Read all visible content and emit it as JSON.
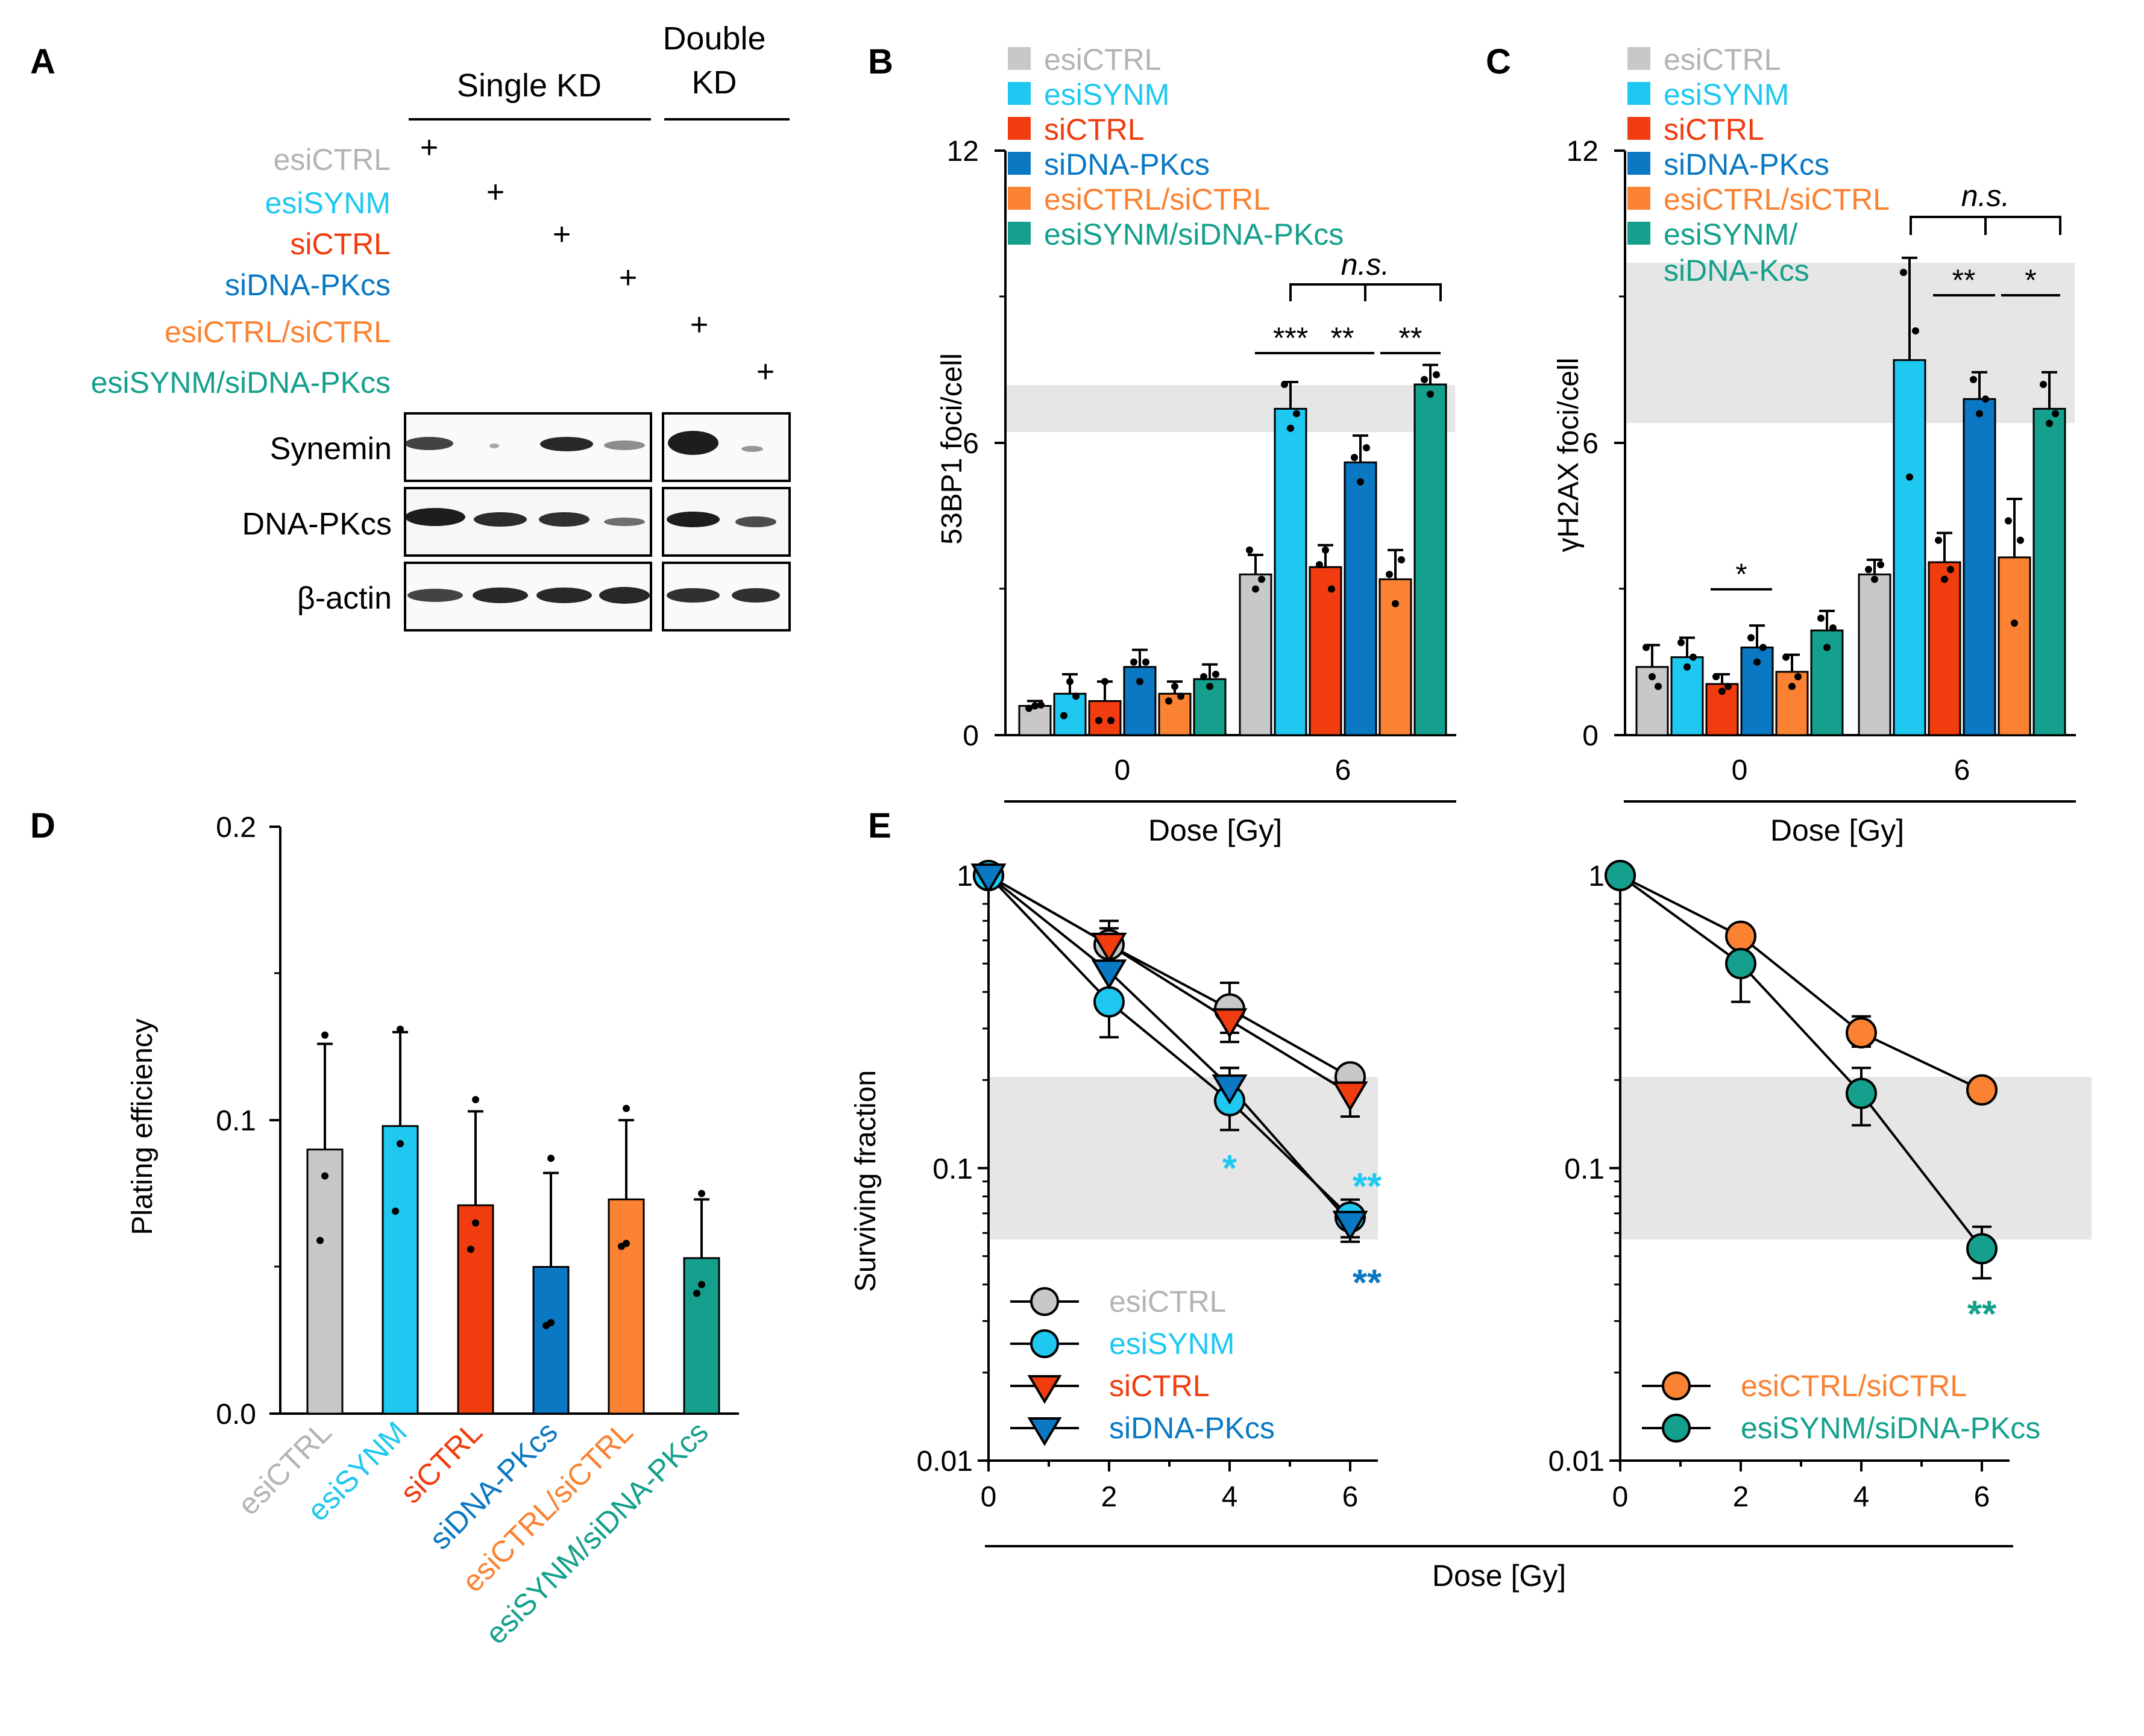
{
  "colors": {
    "esiCTRL": "#c8c8c8",
    "esiSYNM": "#1ec8f0",
    "siCTRL": "#f03c0f",
    "siDNA-PKcs": "#0a78c3",
    "esiCTRL/siCTRL": "#fa8232",
    "esiSYNM/siDNA-PKcs": "#14a08c",
    "esiCTRL_text": "#b4b4b4",
    "band": "#e6e6e6",
    "ink": "#000000"
  },
  "panelA": {
    "letter": "A",
    "header_single": "Single KD",
    "header_double_1": "Double",
    "header_double_2": "KD",
    "conditions": [
      "esiCTRL",
      "esiSYNM",
      "siCTRL",
      "siDNA-PKcs",
      "esiCTRL/siCTRL",
      "esiSYNM/siDNA-PKcs"
    ],
    "plus": "+",
    "blots": [
      "Synemin",
      "DNA-PKcs",
      "β-actin"
    ]
  },
  "panelB": {
    "letter": "B",
    "legend": [
      "esiCTRL",
      "esiSYNM",
      "siCTRL",
      "siDNA-PKcs",
      "esiCTRL/siCTRL",
      "esiSYNM/siDNA-PKcs"
    ],
    "sig": [
      "***",
      "**",
      "**"
    ],
    "ns": "n.s."
  },
  "panelC": {
    "letter": "C",
    "legend": [
      "esiCTRL",
      "esiSYNM",
      "siCTRL",
      "siDNA-PKcs",
      "esiCTRL/siCTRL",
      "esiSYNM/",
      "siDNA-Kcs"
    ],
    "sig_low": "*",
    "sig": [
      "**",
      "*"
    ],
    "ns": "n.s."
  },
  "panelD": {
    "letter": "D"
  },
  "panelE": {
    "letter": "E",
    "legend_left": [
      "esiCTRL",
      "esiSYNM",
      "siCTRL",
      "siDNA-PKcs"
    ],
    "legend_right": [
      "esiCTRL/siCTRL",
      "esiSYNM/siDNA-PKcs"
    ],
    "stars": [
      "*",
      "**",
      "**",
      "**"
    ],
    "xlabel": "Dose [Gy]"
  },
  "chart_data": [
    {
      "id": "B",
      "type": "bar",
      "title": "",
      "ylabel": "53BP1 foci/cell",
      "xlabel": "Dose [Gy]",
      "categories": [
        "0",
        "6"
      ],
      "ylim": [
        0,
        12
      ],
      "yticks": [
        "0",
        "6",
        "12"
      ],
      "reference_band": [
        6.2,
        7.2
      ],
      "series": [
        {
          "name": "esiCTRL",
          "values": [
            0.6,
            3.3
          ],
          "errors": [
            0.1,
            0.4
          ]
        },
        {
          "name": "esiSYNM",
          "values": [
            0.85,
            6.7
          ],
          "errors": [
            0.4,
            0.55
          ]
        },
        {
          "name": "siCTRL",
          "values": [
            0.7,
            3.45
          ],
          "errors": [
            0.4,
            0.45
          ]
        },
        {
          "name": "siDNA-PKcs",
          "values": [
            1.4,
            5.6
          ],
          "errors": [
            0.35,
            0.55
          ]
        },
        {
          "name": "esiCTRL/siCTRL",
          "values": [
            0.85,
            3.2
          ],
          "errors": [
            0.25,
            0.6
          ]
        },
        {
          "name": "esiSYNM/siDNA-PKcs",
          "values": [
            1.15,
            7.2
          ],
          "errors": [
            0.3,
            0.4
          ]
        }
      ],
      "dots": [
        [
          [
            0.55,
            0.6,
            0.62
          ],
          [
            3.8,
            3.0,
            3.2
          ]
        ],
        [
          [
            0.4,
            1.1,
            0.8
          ],
          [
            7.2,
            6.3,
            6.6
          ]
        ],
        [
          [
            0.3,
            1.1,
            0.3
          ],
          [
            3.5,
            3.8,
            3.0
          ]
        ],
        [
          [
            1.5,
            1.1,
            1.5
          ],
          [
            5.7,
            5.2,
            5.9
          ]
        ],
        [
          [
            0.7,
            1.0,
            0.8
          ],
          [
            3.3,
            2.7,
            3.6
          ]
        ],
        [
          [
            1.2,
            1.0,
            1.25
          ],
          [
            7.3,
            7.0,
            7.4
          ]
        ]
      ]
    },
    {
      "id": "C",
      "type": "bar",
      "title": "",
      "ylabel": "γH2AX foci/cell",
      "xlabel": "Dose [Gy]",
      "categories": [
        "0",
        "6"
      ],
      "ylim": [
        0,
        12
      ],
      "yticks": [
        "0",
        "6",
        "12"
      ],
      "reference_band": [
        6.3,
        9.6
      ],
      "series": [
        {
          "name": "esiCTRL",
          "values": [
            1.4,
            3.3
          ],
          "errors": [
            0.45,
            0.3
          ]
        },
        {
          "name": "esiSYNM",
          "values": [
            1.6,
            7.7
          ],
          "errors": [
            0.4,
            2.1
          ]
        },
        {
          "name": "siCTRL",
          "values": [
            1.05,
            3.55
          ],
          "errors": [
            0.2,
            0.6
          ]
        },
        {
          "name": "siDNA-PKcs",
          "values": [
            1.8,
            6.9
          ],
          "errors": [
            0.45,
            0.55
          ]
        },
        {
          "name": "esiCTRL/siCTRL",
          "values": [
            1.3,
            3.65
          ],
          "errors": [
            0.35,
            1.2
          ]
        },
        {
          "name": "esiSYNM/siDNA-PKcs",
          "values": [
            2.15,
            6.7
          ],
          "errors": [
            0.4,
            0.75
          ]
        }
      ],
      "dots": [
        [
          [
            1.8,
            1.2,
            1.0
          ],
          [
            3.4,
            3.2,
            3.5
          ]
        ],
        [
          [
            1.9,
            1.4,
            1.6
          ],
          [
            9.5,
            5.3,
            8.3
          ]
        ],
        [
          [
            1.2,
            0.9,
            1.0
          ],
          [
            4.0,
            3.2,
            3.4
          ]
        ],
        [
          [
            2.0,
            1.5,
            1.8
          ],
          [
            7.3,
            6.6,
            6.9
          ]
        ],
        [
          [
            1.6,
            1.0,
            1.2
          ],
          [
            4.4,
            2.3,
            4.0
          ]
        ],
        [
          [
            2.4,
            1.8,
            2.2
          ],
          [
            7.2,
            6.4,
            6.6
          ]
        ]
      ]
    },
    {
      "id": "D",
      "type": "bar",
      "title": "",
      "ylabel": "Plating efficiency",
      "xlabel": "",
      "categories": [
        "esiCTRL",
        "esiSYNM",
        "siCTRL",
        "siDNA-PKcs",
        "esiCTRL/siCTRL",
        "esiSYNM/siDNA-PKcs"
      ],
      "ylim": [
        0,
        0.2
      ],
      "yticks": [
        "0.0",
        "0.1",
        "0.2"
      ],
      "values": [
        0.09,
        0.098,
        0.071,
        0.05,
        0.073,
        0.053
      ],
      "errors": [
        0.036,
        0.032,
        0.032,
        0.032,
        0.027,
        0.02
      ],
      "dots": [
        [
          0.129,
          0.081,
          0.059
        ],
        [
          0.131,
          0.092,
          0.069
        ],
        [
          0.107,
          0.065,
          0.056
        ],
        [
          0.087,
          0.031,
          0.03
        ],
        [
          0.104,
          0.058,
          0.057
        ],
        [
          0.075,
          0.044,
          0.041
        ]
      ]
    },
    {
      "id": "E-left",
      "type": "line",
      "title": "",
      "ylabel": "Surviving fraction",
      "xlabel": "Dose [Gy]",
      "yscale": "log",
      "ylim": [
        0.01,
        1
      ],
      "xlim": [
        0,
        6.5
      ],
      "yticks": [
        "0.01",
        "0.1",
        "1"
      ],
      "xticks": [
        "0",
        "2",
        "4",
        "6"
      ],
      "reference_band": [
        0.055,
        0.2
      ],
      "series": [
        {
          "name": "esiCTRL",
          "marker": "circle",
          "x": [
            0,
            2,
            4,
            6
          ],
          "y": [
            1,
            0.58,
            0.35,
            0.205
          ],
          "yerr_hi": [
            1,
            0.7,
            0.43,
            0.22
          ],
          "yerr_lo": [
            1,
            0.48,
            0.29,
            0.19
          ]
        },
        {
          "name": "esiSYNM",
          "marker": "circle",
          "x": [
            0,
            2,
            4,
            6
          ],
          "y": [
            1,
            0.37,
            0.17,
            0.068
          ],
          "yerr_hi": [
            1,
            0.5,
            0.22,
            0.078
          ],
          "yerr_lo": [
            1,
            0.28,
            0.135,
            0.058
          ]
        },
        {
          "name": "siCTRL",
          "marker": "triangle-down",
          "x": [
            0,
            2,
            4,
            6
          ],
          "y": [
            1,
            0.58,
            0.32,
            0.18
          ],
          "yerr_hi": [
            1,
            0.66,
            0.37,
            0.2
          ],
          "yerr_lo": [
            1,
            0.5,
            0.27,
            0.15
          ]
        },
        {
          "name": "siDNA-PKcs",
          "marker": "triangle-down",
          "x": [
            0,
            2,
            4,
            6
          ],
          "y": [
            1,
            0.47,
            0.19,
            0.065
          ],
          "yerr_hi": [
            1,
            0.54,
            0.22,
            0.072
          ],
          "yerr_lo": [
            1,
            0.4,
            0.16,
            0.056
          ]
        }
      ],
      "annotations": [
        {
          "x": 4,
          "text": "*",
          "series": "esiSYNM"
        },
        {
          "x": 6,
          "text": "**",
          "series": "esiSYNM"
        },
        {
          "x": 6,
          "text": "**",
          "series": "siDNA-PKcs"
        }
      ]
    },
    {
      "id": "E-right",
      "type": "line",
      "title": "",
      "ylabel": "",
      "xlabel": "Dose [Gy]",
      "yscale": "log",
      "ylim": [
        0.01,
        1
      ],
      "xlim": [
        0,
        6.5
      ],
      "yticks": [
        "0.01",
        "0.1",
        "1"
      ],
      "xticks": [
        "0",
        "2",
        "4",
        "6"
      ],
      "reference_band": [
        0.055,
        0.2
      ],
      "series": [
        {
          "name": "esiCTRL/siCTRL",
          "marker": "circle",
          "x": [
            0,
            2,
            4,
            6
          ],
          "y": [
            1,
            0.62,
            0.29,
            0.185
          ],
          "yerr_hi": [
            1,
            0.66,
            0.33,
            0.19
          ],
          "yerr_lo": [
            1,
            0.58,
            0.26,
            0.18
          ]
        },
        {
          "name": "esiSYNM/siDNA-PKcs",
          "marker": "circle",
          "x": [
            0,
            2,
            4,
            6
          ],
          "y": [
            1,
            0.5,
            0.18,
            0.053
          ],
          "yerr_hi": [
            1,
            0.62,
            0.22,
            0.063
          ],
          "yerr_lo": [
            1,
            0.37,
            0.14,
            0.042
          ]
        }
      ],
      "annotations": [
        {
          "x": 6,
          "text": "**",
          "series": "esiSYNM/siDNA-PKcs"
        }
      ]
    }
  ]
}
